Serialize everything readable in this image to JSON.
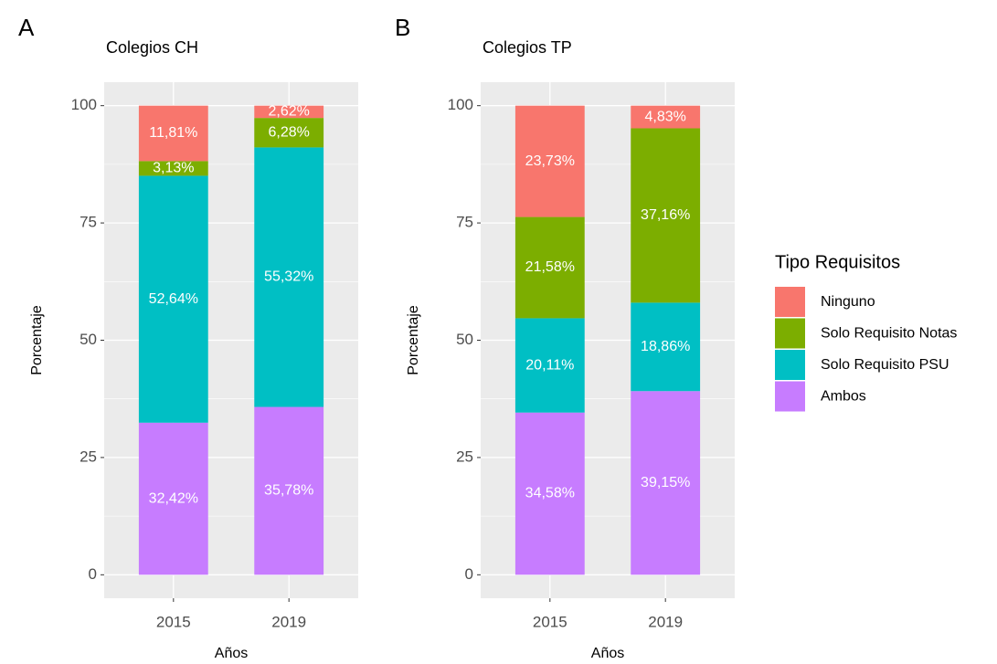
{
  "chart_data": [
    {
      "type": "bar",
      "stacked": true,
      "tag": "A",
      "title": "Colegios CH",
      "x_label": "Años",
      "y_label": "Porcentaje",
      "categories": [
        "2015",
        "2019"
      ],
      "ylim": [
        -5,
        105
      ],
      "yticks": [
        0,
        25,
        50,
        75,
        100
      ],
      "grid": true,
      "series": [
        {
          "color": "#C77CFF",
          "values": [
            32.42,
            35.78
          ],
          "value_labels": [
            "32,42%",
            "35,78%"
          ]
        },
        {
          "color": "#00BFC4",
          "values": [
            52.64,
            55.32
          ],
          "value_labels": [
            "52,64%",
            "55,32%"
          ]
        },
        {
          "color": "#7CAE00",
          "values": [
            3.13,
            6.28
          ],
          "value_labels": [
            "3,13%",
            "6,28%"
          ]
        },
        {
          "color": "#F8766D",
          "values": [
            11.81,
            2.62
          ],
          "value_labels": [
            "11,81%",
            "2,62%"
          ]
        }
      ]
    },
    {
      "type": "bar",
      "stacked": true,
      "tag": "B",
      "title": "Colegios TP",
      "x_label": "Años",
      "y_label": "Porcentaje",
      "categories": [
        "2015",
        "2019"
      ],
      "ylim": [
        -5,
        105
      ],
      "yticks": [
        0,
        25,
        50,
        75,
        100
      ],
      "grid": true,
      "legend": "right",
      "legend_title": "Tipo Requisitos",
      "series": [
        {
          "name": "Ambos",
          "color": "#C77CFF",
          "values": [
            34.58,
            39.15
          ],
          "value_labels": [
            "34,58%",
            "39,15%"
          ]
        },
        {
          "name": "Solo Requisito PSU",
          "color": "#00BFC4",
          "values": [
            20.11,
            18.86
          ],
          "value_labels": [
            "20,11%",
            "18,86%"
          ]
        },
        {
          "name": "Solo Requisito Notas",
          "color": "#7CAE00",
          "values": [
            21.58,
            37.16
          ],
          "value_labels": [
            "21,58%",
            "37,16%"
          ]
        },
        {
          "name": "Ninguno",
          "color": "#F8766D",
          "values": [
            23.73,
            4.83
          ],
          "value_labels": [
            "23,73%",
            "4,83%"
          ]
        }
      ]
    }
  ]
}
